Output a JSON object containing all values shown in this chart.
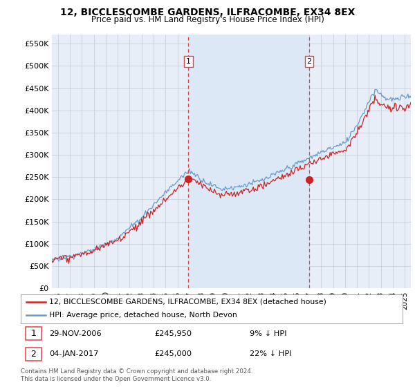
{
  "title": "12, BICCLESCOMBE GARDENS, ILFRACOMBE, EX34 8EX",
  "subtitle": "Price paid vs. HM Land Registry's House Price Index (HPI)",
  "ylabel_ticks": [
    "£0",
    "£50K",
    "£100K",
    "£150K",
    "£200K",
    "£250K",
    "£300K",
    "£350K",
    "£400K",
    "£450K",
    "£500K",
    "£550K"
  ],
  "ytick_values": [
    0,
    50000,
    100000,
    150000,
    200000,
    250000,
    300000,
    350000,
    400000,
    450000,
    500000,
    550000
  ],
  "ylim": [
    0,
    570000
  ],
  "xlim_start": 1995.5,
  "xlim_end": 2025.5,
  "hpi_color": "#6699cc",
  "price_color": "#cc2222",
  "vline_color": "#dd4444",
  "shade_color": "#dce8f5",
  "marker1_x": 2006.91,
  "marker1_y": 245950,
  "marker2_x": 2017.01,
  "marker2_y": 245000,
  "legend_price": "12, BICCLESCOMBE GARDENS, ILFRACOMBE, EX34 8EX (detached house)",
  "legend_hpi": "HPI: Average price, detached house, North Devon",
  "footer": "Contains HM Land Registry data © Crown copyright and database right 2024.\nThis data is licensed under the Open Government Licence v3.0.",
  "background_color": "#ffffff",
  "plot_bg_color": "#e8eef8"
}
